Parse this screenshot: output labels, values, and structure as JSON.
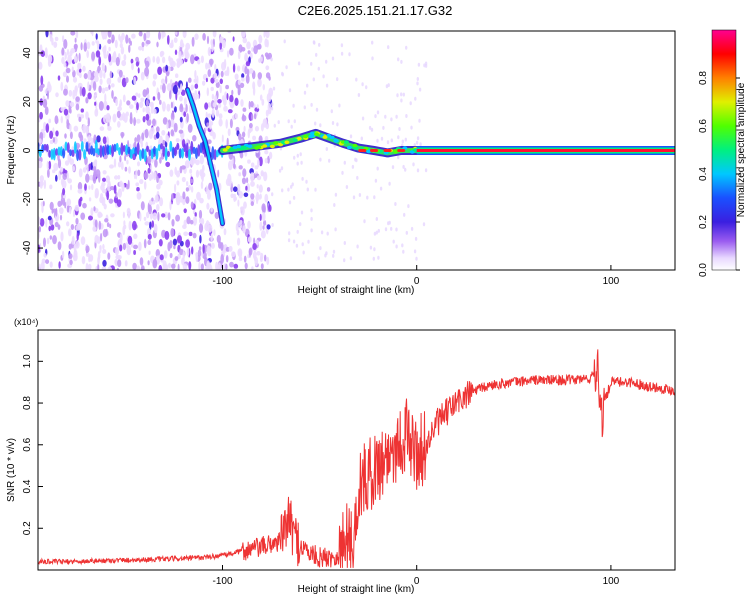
{
  "title": "C2E6.2025.151.21.17.G32",
  "colors": {
    "snr_line": "#ee3333",
    "frame": "#000000"
  },
  "chart_data": [
    {
      "type": "heatmap",
      "xlabel": "Height of straight line (km)",
      "ylabel": "Frequency (Hz)",
      "xlim": [
        -195,
        133
      ],
      "ylim": [
        -49,
        49
      ],
      "x_ticks": [
        -100,
        0,
        100
      ],
      "y_ticks": [
        -40,
        -20,
        0,
        20,
        40
      ],
      "colorbar": {
        "label": "Normalized spectral amplitude",
        "range": [
          0,
          1
        ],
        "ticks": [
          0.0,
          0.2,
          0.4,
          0.6,
          0.8
        ],
        "colormap": "rainbow (white-purple-blue-cyan-green-yellow-red-magenta)"
      },
      "tracks": [
        {
          "x": [
            -118,
            -115,
            -112,
            -109,
            -106,
            -103,
            -100
          ],
          "y": [
            25,
            18,
            10,
            4,
            -6,
            -16,
            -30
          ]
        },
        {
          "x": [
            -100,
            -90,
            -80,
            -70,
            -60,
            -52,
            -45,
            -38,
            -30,
            -22,
            -15,
            -8,
            0,
            20,
            60,
            100,
            133
          ],
          "y": [
            0,
            1,
            2,
            3,
            5,
            7,
            5,
            3,
            1,
            0,
            -1,
            0,
            0,
            0,
            0,
            0,
            0
          ]
        }
      ]
    },
    {
      "type": "line",
      "xlabel": "Height of straight line (km)",
      "ylabel": "SNR (10 * v/v)",
      "y_multiplier": "(x10⁴)",
      "xlim": [
        -195,
        133
      ],
      "ylim": [
        0,
        1.15
      ],
      "x_ticks": [
        -100,
        0,
        100
      ],
      "y_ticks": [
        0.2,
        0.4,
        0.6,
        0.8,
        1.0
      ],
      "y_tick_labels": [
        "0.2",
        "0.4",
        "0.6",
        "0.8",
        "1.0"
      ],
      "series": [
        {
          "x": [
            -195,
            -180,
            -160,
            -140,
            -120,
            -110,
            -100,
            -90,
            -80,
            -70,
            -66,
            -63,
            -60,
            -55,
            -50,
            -45,
            -40,
            -35,
            -33,
            -30,
            -25,
            -20,
            -15,
            -10,
            -5,
            0,
            5,
            10,
            20,
            30,
            40,
            50,
            60,
            70,
            80,
            90,
            93,
            95,
            100,
            110,
            120,
            133
          ],
          "y": [
            0.04,
            0.04,
            0.045,
            0.05,
            0.055,
            0.06,
            0.07,
            0.09,
            0.11,
            0.14,
            0.25,
            0.16,
            0.12,
            0.08,
            0.06,
            0.06,
            0.07,
            0.2,
            0.05,
            0.4,
            0.45,
            0.5,
            0.55,
            0.6,
            0.65,
            0.55,
            0.6,
            0.7,
            0.8,
            0.86,
            0.89,
            0.9,
            0.91,
            0.91,
            0.91,
            0.92,
            1.0,
            0.75,
            0.9,
            0.9,
            0.88,
            0.86
          ]
        }
      ]
    }
  ]
}
